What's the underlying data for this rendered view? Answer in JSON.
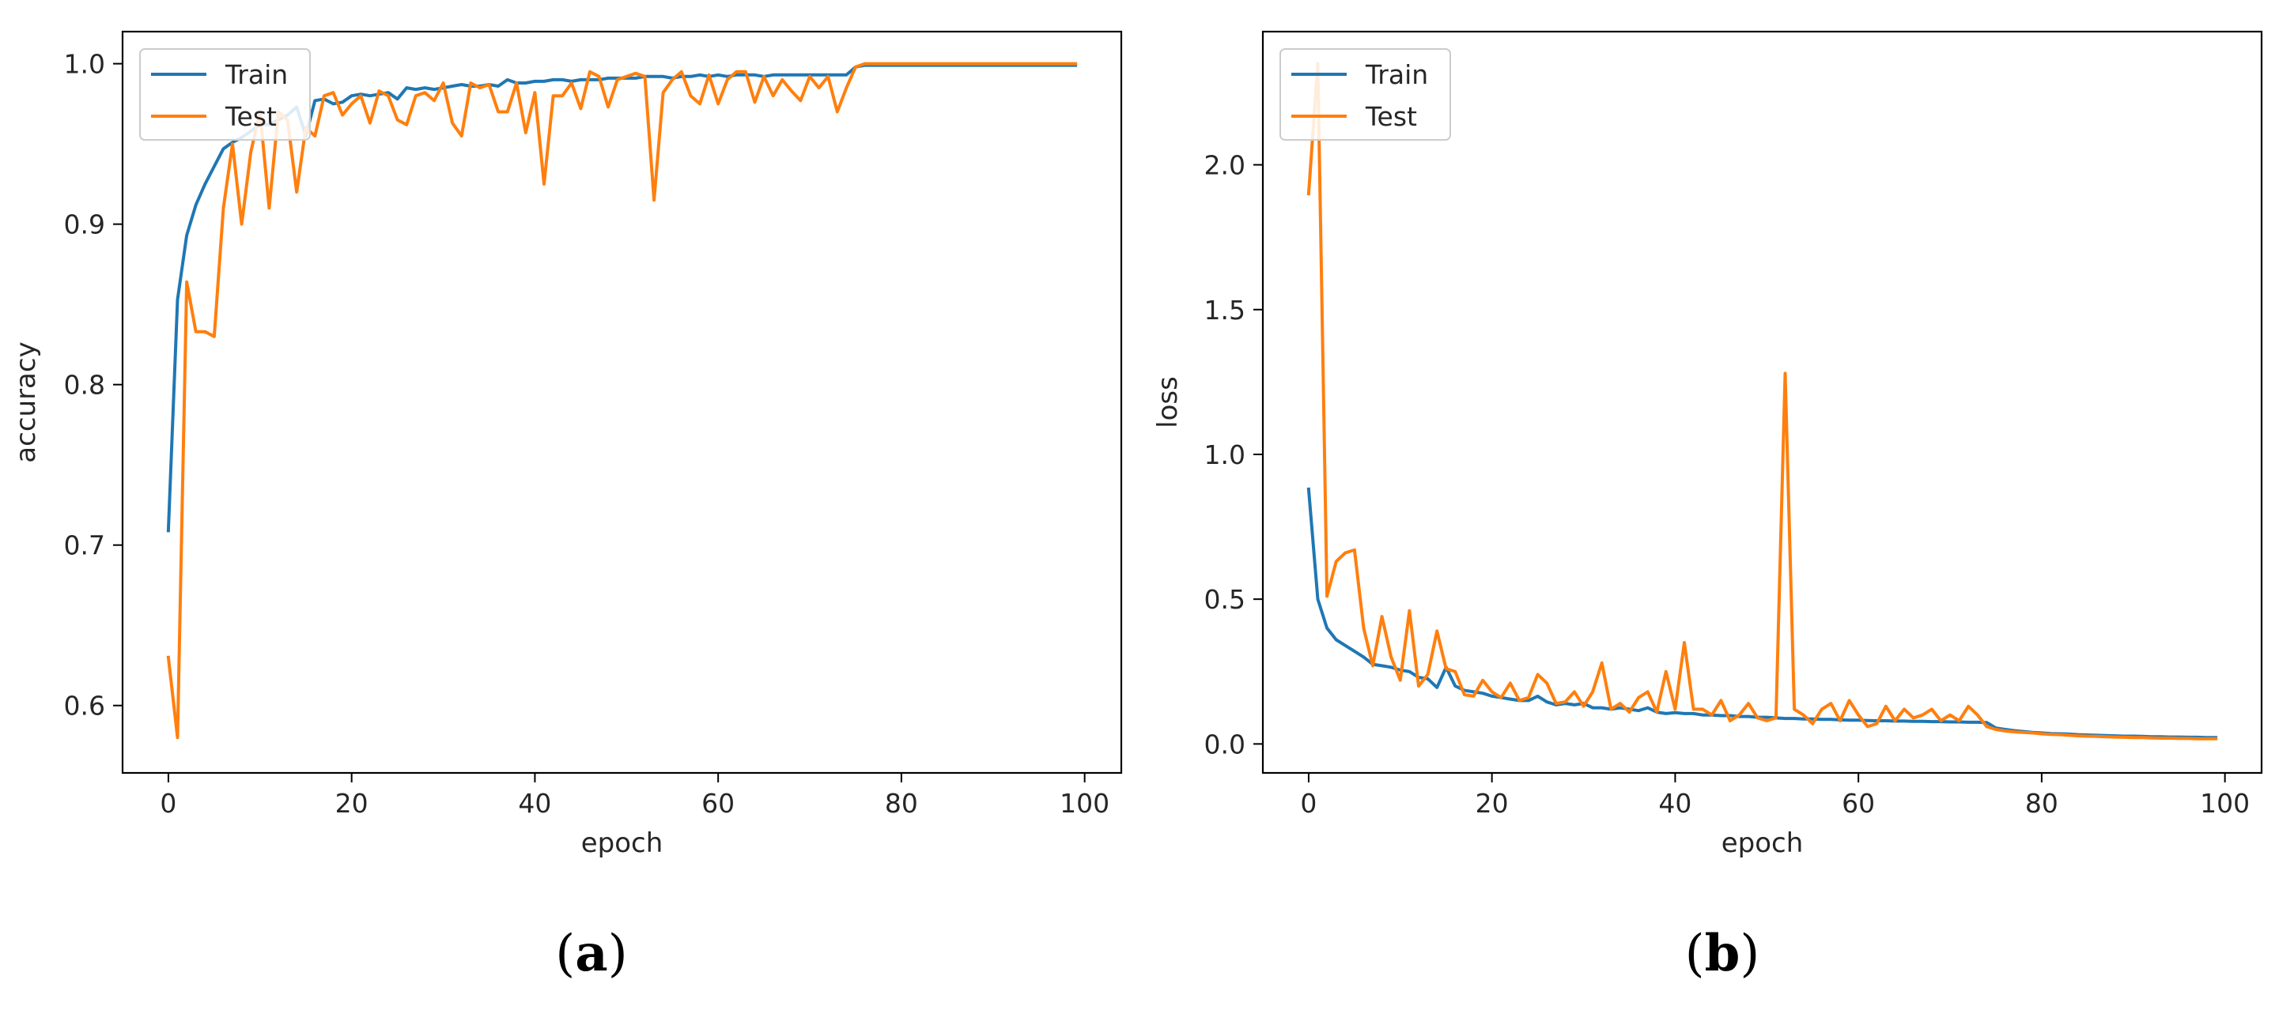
{
  "chart_data": [
    {
      "panel_label": "(a)",
      "type": "line",
      "title": "",
      "xlabel": "epoch",
      "ylabel": "accuracy",
      "xlim": [
        -5,
        104
      ],
      "ylim": [
        0.558,
        1.02
      ],
      "xticks": [
        0,
        20,
        40,
        60,
        80,
        100
      ],
      "xtick_labels": [
        "0",
        "20",
        "40",
        "60",
        "80",
        "100"
      ],
      "yticks": [
        0.6,
        0.7,
        0.8,
        0.9,
        1.0
      ],
      "ytick_labels": [
        "0.6",
        "0.7",
        "0.8",
        "0.9",
        "1.0"
      ],
      "grid": false,
      "legend": "top-left",
      "series": [
        {
          "name": "Train",
          "color": "#1f77b4",
          "x": [
            0,
            1,
            2,
            3,
            4,
            5,
            6,
            7,
            8,
            9,
            10,
            11,
            12,
            13,
            14,
            15,
            16,
            17,
            18,
            19,
            20,
            21,
            22,
            23,
            24,
            25,
            26,
            27,
            28,
            29,
            30,
            31,
            32,
            33,
            34,
            35,
            36,
            37,
            38,
            39,
            40,
            41,
            42,
            43,
            44,
            45,
            46,
            47,
            48,
            49,
            50,
            51,
            52,
            53,
            54,
            55,
            56,
            57,
            58,
            59,
            60,
            61,
            62,
            63,
            64,
            65,
            66,
            67,
            68,
            69,
            70,
            71,
            72,
            73,
            74,
            75,
            76,
            77,
            78,
            79,
            80,
            81,
            82,
            83,
            84,
            85,
            86,
            87,
            88,
            89,
            90,
            91,
            92,
            93,
            94,
            95,
            96,
            97,
            98,
            99
          ],
          "y": [
            0.709,
            0.853,
            0.893,
            0.912,
            0.925,
            0.936,
            0.947,
            0.951,
            0.954,
            0.958,
            0.962,
            0.962,
            0.965,
            0.968,
            0.973,
            0.955,
            0.977,
            0.978,
            0.975,
            0.976,
            0.98,
            0.981,
            0.98,
            0.981,
            0.982,
            0.978,
            0.985,
            0.984,
            0.985,
            0.984,
            0.985,
            0.986,
            0.987,
            0.986,
            0.986,
            0.987,
            0.986,
            0.99,
            0.988,
            0.988,
            0.989,
            0.989,
            0.99,
            0.99,
            0.989,
            0.99,
            0.99,
            0.99,
            0.991,
            0.991,
            0.991,
            0.991,
            0.992,
            0.992,
            0.992,
            0.991,
            0.992,
            0.992,
            0.993,
            0.992,
            0.993,
            0.992,
            0.993,
            0.993,
            0.993,
            0.992,
            0.993,
            0.993,
            0.993,
            0.993,
            0.993,
            0.993,
            0.993,
            0.993,
            0.993,
            0.998,
            0.999,
            0.999,
            0.999,
            0.999,
            0.999,
            0.999,
            0.999,
            0.999,
            0.999,
            0.999,
            0.999,
            0.999,
            0.999,
            0.999,
            0.999,
            0.999,
            0.999,
            0.999,
            0.999,
            0.999,
            0.999,
            0.999,
            0.999,
            0.999
          ]
        },
        {
          "name": "Test",
          "color": "#ff7f0e",
          "x": [
            0,
            1,
            2,
            3,
            4,
            5,
            6,
            7,
            8,
            9,
            10,
            11,
            12,
            13,
            14,
            15,
            16,
            17,
            18,
            19,
            20,
            21,
            22,
            23,
            24,
            25,
            26,
            27,
            28,
            29,
            30,
            31,
            32,
            33,
            34,
            35,
            36,
            37,
            38,
            39,
            40,
            41,
            42,
            43,
            44,
            45,
            46,
            47,
            48,
            49,
            50,
            51,
            52,
            53,
            54,
            55,
            56,
            57,
            58,
            59,
            60,
            61,
            62,
            63,
            64,
            65,
            66,
            67,
            68,
            69,
            70,
            71,
            72,
            73,
            74,
            75,
            76,
            77,
            78,
            79,
            80,
            81,
            82,
            83,
            84,
            85,
            86,
            87,
            88,
            89,
            90,
            91,
            92,
            93,
            94,
            95,
            96,
            97,
            98,
            99
          ],
          "y": [
            0.63,
            0.58,
            0.864,
            0.833,
            0.833,
            0.83,
            0.91,
            0.95,
            0.9,
            0.945,
            0.97,
            0.91,
            0.97,
            0.965,
            0.92,
            0.96,
            0.955,
            0.98,
            0.982,
            0.968,
            0.975,
            0.98,
            0.963,
            0.983,
            0.98,
            0.965,
            0.962,
            0.98,
            0.982,
            0.977,
            0.988,
            0.963,
            0.955,
            0.988,
            0.985,
            0.987,
            0.97,
            0.97,
            0.988,
            0.957,
            0.982,
            0.925,
            0.98,
            0.98,
            0.988,
            0.972,
            0.995,
            0.992,
            0.973,
            0.99,
            0.992,
            0.994,
            0.992,
            0.915,
            0.982,
            0.99,
            0.995,
            0.98,
            0.975,
            0.993,
            0.975,
            0.99,
            0.995,
            0.995,
            0.976,
            0.992,
            0.98,
            0.99,
            0.983,
            0.977,
            0.992,
            0.985,
            0.992,
            0.97,
            0.985,
            0.998,
            1.0,
            1.0,
            1.0,
            1.0,
            1.0,
            1.0,
            1.0,
            1.0,
            1.0,
            1.0,
            1.0,
            1.0,
            1.0,
            1.0,
            1.0,
            1.0,
            1.0,
            1.0,
            1.0,
            1.0,
            1.0,
            1.0,
            1.0,
            1.0
          ]
        }
      ]
    },
    {
      "panel_label": "(b)",
      "type": "line",
      "title": "",
      "xlabel": "epoch",
      "ylabel": "loss",
      "xlim": [
        -5,
        104
      ],
      "ylim": [
        -0.1,
        2.46
      ],
      "xticks": [
        0,
        20,
        40,
        60,
        80,
        100
      ],
      "xtick_labels": [
        "0",
        "20",
        "40",
        "60",
        "80",
        "100"
      ],
      "yticks": [
        0.0,
        0.5,
        1.0,
        1.5,
        2.0
      ],
      "ytick_labels": [
        "0.0",
        "0.5",
        "1.0",
        "1.5",
        "2.0"
      ],
      "grid": false,
      "legend": "top-left",
      "series": [
        {
          "name": "Train",
          "color": "#1f77b4",
          "x": [
            0,
            1,
            2,
            3,
            4,
            5,
            6,
            7,
            8,
            9,
            10,
            11,
            12,
            13,
            14,
            15,
            16,
            17,
            18,
            19,
            20,
            21,
            22,
            23,
            24,
            25,
            26,
            27,
            28,
            29,
            30,
            31,
            32,
            33,
            34,
            35,
            36,
            37,
            38,
            39,
            40,
            41,
            42,
            43,
            44,
            45,
            46,
            47,
            48,
            49,
            50,
            51,
            52,
            53,
            54,
            55,
            56,
            57,
            58,
            59,
            60,
            61,
            62,
            63,
            64,
            65,
            66,
            67,
            68,
            69,
            70,
            71,
            72,
            73,
            74,
            75,
            76,
            77,
            78,
            79,
            80,
            81,
            82,
            83,
            84,
            85,
            86,
            87,
            88,
            89,
            90,
            91,
            92,
            93,
            94,
            95,
            96,
            97,
            98,
            99
          ],
          "y": [
            0.88,
            0.5,
            0.4,
            0.36,
            0.34,
            0.32,
            0.3,
            0.275,
            0.27,
            0.265,
            0.255,
            0.25,
            0.23,
            0.225,
            0.195,
            0.265,
            0.2,
            0.185,
            0.18,
            0.175,
            0.165,
            0.16,
            0.155,
            0.15,
            0.15,
            0.165,
            0.145,
            0.135,
            0.14,
            0.135,
            0.14,
            0.125,
            0.125,
            0.12,
            0.125,
            0.12,
            0.115,
            0.125,
            0.11,
            0.105,
            0.108,
            0.105,
            0.105,
            0.1,
            0.1,
            0.098,
            0.098,
            0.095,
            0.095,
            0.092,
            0.092,
            0.09,
            0.088,
            0.088,
            0.086,
            0.086,
            0.085,
            0.085,
            0.083,
            0.082,
            0.082,
            0.081,
            0.08,
            0.08,
            0.079,
            0.079,
            0.078,
            0.078,
            0.077,
            0.077,
            0.076,
            0.076,
            0.075,
            0.075,
            0.074,
            0.055,
            0.05,
            0.046,
            0.043,
            0.04,
            0.038,
            0.036,
            0.035,
            0.034,
            0.032,
            0.031,
            0.03,
            0.029,
            0.028,
            0.027,
            0.027,
            0.026,
            0.025,
            0.025,
            0.024,
            0.024,
            0.023,
            0.023,
            0.022,
            0.022
          ]
        },
        {
          "name": "Test",
          "color": "#ff7f0e",
          "x": [
            0,
            1,
            2,
            3,
            4,
            5,
            6,
            7,
            8,
            9,
            10,
            11,
            12,
            13,
            14,
            15,
            16,
            17,
            18,
            19,
            20,
            21,
            22,
            23,
            24,
            25,
            26,
            27,
            28,
            29,
            30,
            31,
            32,
            33,
            34,
            35,
            36,
            37,
            38,
            39,
            40,
            41,
            42,
            43,
            44,
            45,
            46,
            47,
            48,
            49,
            50,
            51,
            52,
            53,
            54,
            55,
            56,
            57,
            58,
            59,
            60,
            61,
            62,
            63,
            64,
            65,
            66,
            67,
            68,
            69,
            70,
            71,
            72,
            73,
            74,
            75,
            76,
            77,
            78,
            79,
            80,
            81,
            82,
            83,
            84,
            85,
            86,
            87,
            88,
            89,
            90,
            91,
            92,
            93,
            94,
            95,
            96,
            97,
            98,
            99
          ],
          "y": [
            1.9,
            2.35,
            0.51,
            0.63,
            0.66,
            0.67,
            0.4,
            0.27,
            0.44,
            0.3,
            0.22,
            0.46,
            0.2,
            0.24,
            0.39,
            0.26,
            0.25,
            0.17,
            0.165,
            0.22,
            0.18,
            0.16,
            0.21,
            0.15,
            0.16,
            0.24,
            0.21,
            0.14,
            0.145,
            0.18,
            0.13,
            0.18,
            0.28,
            0.12,
            0.14,
            0.11,
            0.16,
            0.18,
            0.11,
            0.25,
            0.12,
            0.35,
            0.12,
            0.12,
            0.1,
            0.15,
            0.08,
            0.1,
            0.14,
            0.09,
            0.08,
            0.09,
            1.28,
            0.12,
            0.1,
            0.07,
            0.12,
            0.14,
            0.08,
            0.15,
            0.1,
            0.06,
            0.07,
            0.13,
            0.08,
            0.12,
            0.09,
            0.1,
            0.12,
            0.08,
            0.1,
            0.08,
            0.13,
            0.1,
            0.06,
            0.05,
            0.045,
            0.042,
            0.04,
            0.038,
            0.035,
            0.033,
            0.032,
            0.03,
            0.028,
            0.027,
            0.026,
            0.025,
            0.024,
            0.023,
            0.022,
            0.022,
            0.021,
            0.02,
            0.02,
            0.019,
            0.019,
            0.018,
            0.018,
            0.018
          ]
        }
      ]
    }
  ]
}
